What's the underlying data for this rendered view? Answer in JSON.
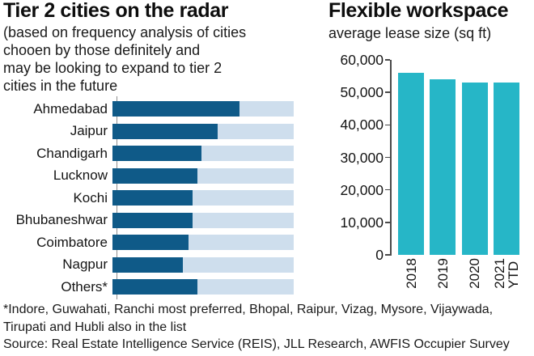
{
  "left": {
    "title": "Tier 2 cities on the radar",
    "subtitle_lines": [
      "(based on frequency analysis of cities",
      "chooen by those definitely and",
      "may be looking to expand to tier 2",
      "cities in the future"
    ]
  },
  "right": {
    "title": "Flexible workspace",
    "subtitle": "average lease size (sq ft)"
  },
  "footnote": {
    "line1": "*Indore, Guwahati, Ranchi most preferred, Bhopal, Raipur, Vizag, Mysore, Vijaywada,",
    "line2": "Tirupati and Hubli also in the list",
    "source": "Source: Real Estate Intelligence Service (REIS), JLL Research, AWFIS Occupier Survey"
  },
  "colors": {
    "dark_blue_bar": "#0f5a88",
    "light_blue_track": "#cedeed",
    "teal_bar": "#26b6c7",
    "axis_gray": "#4a4a4a"
  },
  "chart_data": [
    {
      "type": "bar",
      "orientation": "horizontal",
      "title": "Tier 2 cities on the radar",
      "subtitle": "(based on frequency analysis of cities chooen by those definitely and may be looking to expand to tier 2 cities in the future",
      "categories": [
        "Ahmedabad",
        "Jaipur",
        "Chandigarh",
        "Lucknow",
        "Kochi",
        "Bhubaneshwar",
        "Coimbatore",
        "Nagpur",
        "Others*"
      ],
      "values": [
        70,
        58,
        49,
        47,
        44,
        44,
        42,
        39,
        47
      ],
      "value_unit": "relative frequency, % of full bar track (no numeric axis shown)",
      "xlim": [
        0,
        100
      ],
      "grid": false,
      "legend": false,
      "bar_color": "#0f5a88",
      "track_color": "#cedeed"
    },
    {
      "type": "bar",
      "orientation": "vertical",
      "title": "Flexible workspace",
      "subtitle": "average lease size (sq ft)",
      "categories": [
        "2018",
        "2019",
        "2020",
        "2021\nYTD"
      ],
      "values": [
        56000,
        54000,
        53000,
        53000
      ],
      "ylabel": "average lease size (sq ft)",
      "ylim": [
        0,
        60000
      ],
      "yticks": [
        60000,
        50000,
        40000,
        30000,
        20000,
        10000,
        0
      ],
      "ytick_labels": [
        "60,000",
        "50,000",
        "40,000",
        "30,000",
        "20,000",
        "10,000",
        "0"
      ],
      "grid": false,
      "legend": false,
      "bar_color": "#26b6c7"
    }
  ]
}
